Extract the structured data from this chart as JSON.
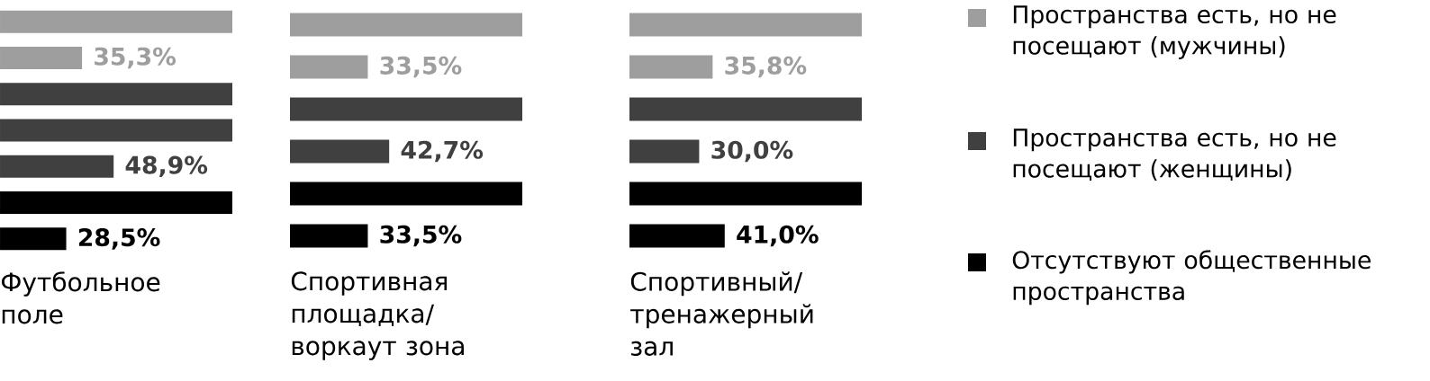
{
  "chart_data": [
    {
      "type": "bar",
      "orientation": "horizontal",
      "xlim": [
        0,
        100
      ],
      "xlabel": "Футбольное поле",
      "categories": [
        null,
        null,
        null,
        null,
        null,
        null,
        null
      ],
      "values": [
        100,
        35.3,
        100,
        100,
        48.9,
        100,
        28.5
      ],
      "colors": [
        "#9e9e9e",
        "#9e9e9e",
        "#404040",
        "#404040",
        "#404040",
        "#000000",
        "#000000"
      ],
      "value_labels": [
        null,
        "35,3%",
        null,
        null,
        "48,9%",
        null,
        "28,5%"
      ]
    },
    {
      "type": "bar",
      "orientation": "horizontal",
      "xlim": [
        0,
        100
      ],
      "xlabel": "Спортивная площадка/ воркаут зона",
      "categories": [
        null,
        null,
        null,
        null,
        null,
        null
      ],
      "values": [
        100,
        33.5,
        100,
        42.7,
        100,
        33.5
      ],
      "colors": [
        "#9e9e9e",
        "#9e9e9e",
        "#404040",
        "#404040",
        "#000000",
        "#000000"
      ],
      "value_labels": [
        null,
        "33,5%",
        null,
        "42,7%",
        null,
        "33,5%"
      ]
    },
    {
      "type": "bar",
      "orientation": "horizontal",
      "xlim": [
        0,
        100
      ],
      "xlabel": "Спортивный/ тренажерный зал",
      "categories": [
        null,
        null,
        null,
        null,
        null,
        null
      ],
      "values": [
        100,
        35.8,
        100,
        30.0,
        100,
        41.0
      ],
      "colors": [
        "#9e9e9e",
        "#9e9e9e",
        "#404040",
        "#404040",
        "#000000",
        "#000000"
      ],
      "value_labels": [
        null,
        "35,8%",
        null,
        "30,0%",
        null,
        "41,0%"
      ]
    },
    {
      "type": "other",
      "categories": [
        "Пространства есть, но не посещают (мужчины)",
        "Пространства есть, но не посещают (женщины)",
        "Отсутствуют общественные пространства"
      ],
      "colors": [
        "#9e9e9e",
        "#404040",
        "#000000"
      ]
    }
  ]
}
